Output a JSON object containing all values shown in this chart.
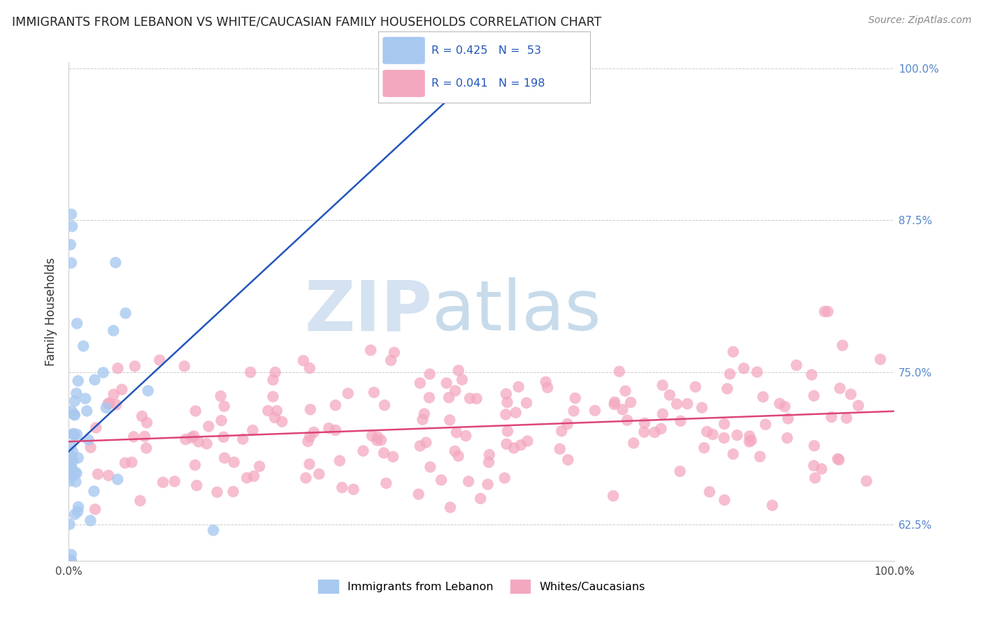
{
  "title": "IMMIGRANTS FROM LEBANON VS WHITE/CAUCASIAN FAMILY HOUSEHOLDS CORRELATION CHART",
  "source": "Source: ZipAtlas.com",
  "ylabel": "Family Households",
  "xlim": [
    0.0,
    1.0
  ],
  "ylim": [
    0.595,
    1.005
  ],
  "yticks": [
    0.625,
    0.75,
    0.875,
    1.0
  ],
  "ytick_labels": [
    "62.5%",
    "75.0%",
    "87.5%",
    "100.0%"
  ],
  "legend_r_blue": "R = 0.425",
  "legend_n_blue": "N =  53",
  "legend_r_pink": "R = 0.041",
  "legend_n_pink": "N = 198",
  "blue_color": "#a8c8f0",
  "pink_color": "#f4a8c0",
  "trend_blue": "#2255bb",
  "trend_pink": "#dd4477",
  "watermark_zip": "ZIP",
  "watermark_atlas": "atlas",
  "blue_label": "Immigrants from Lebanon",
  "pink_label": "Whites/Caucasians"
}
